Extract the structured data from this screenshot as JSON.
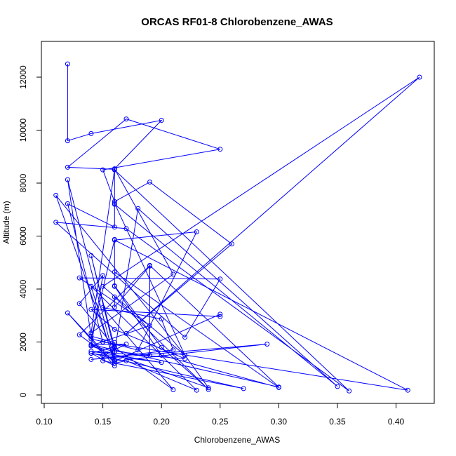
{
  "chart_data": {
    "type": "line",
    "title": "ORCAS RF01-8 Chlorobenzene_AWAS",
    "xlabel": "Chlorobenzene_AWAS",
    "ylabel": "Altitude (m)",
    "xlim": [
      0.1,
      0.42
    ],
    "ylim": [
      0,
      12500
    ],
    "x_ticks": [
      "0.10",
      "0.15",
      "0.20",
      "0.25",
      "0.30",
      "0.35",
      "0.40"
    ],
    "y_ticks": [
      "0",
      "2000",
      "4000",
      "6000",
      "8000",
      "10000",
      "12000"
    ],
    "series_color": "#0000ff",
    "markers": "open-circle",
    "grid": false,
    "series": [
      {
        "x": [
          0.12,
          0.12,
          0.14,
          0.2,
          0.16,
          0.21,
          0.14,
          0.16,
          0.12,
          0.17,
          0.25,
          0.15,
          0.16,
          0.19,
          0.26,
          0.17,
          0.42,
          0.15,
          0.22,
          0.16,
          0.16,
          0.36,
          0.17,
          0.11,
          0.22,
          0.25,
          0.13,
          0.19,
          0.14,
          0.16,
          0.18,
          0.35,
          0.16,
          0.16,
          0.12,
          0.15,
          0.41,
          0.16,
          0.23,
          0.18,
          0.14,
          0.16,
          0.16,
          0.2,
          0.3,
          0.16,
          0.16,
          0.2,
          0.24,
          0.16,
          0.16,
          0.19,
          0.19,
          0.16,
          0.14,
          0.16,
          0.13,
          0.15,
          0.14,
          0.24,
          0.22,
          0.11,
          0.16,
          0.12,
          0.14,
          0.16,
          0.16,
          0.21,
          0.15,
          0.2,
          0.21,
          0.14,
          0.29,
          0.16,
          0.25,
          0.25,
          0.14,
          0.16,
          0.22,
          0.14,
          0.2,
          0.14,
          0.16,
          0.16,
          0.13,
          0.19,
          0.3,
          0.14,
          0.17,
          0.15,
          0.15,
          0.27,
          0.14,
          0.16,
          0.12,
          0.16,
          0.17,
          0.23,
          0.14,
          0.16
        ],
        "y": [
          12500,
          9600,
          9870,
          10370,
          8540,
          4560,
          2340,
          8520,
          8600,
          10420,
          9280,
          8500,
          7300,
          8040,
          5700,
          2320,
          12000,
          4100,
          1500,
          7240,
          8500,
          150,
          6280,
          6520,
          2180,
          4380,
          4420,
          2620,
          1860,
          1640,
          7040,
          320,
          7200,
          6340,
          7220,
          2000,
          180,
          5850,
          6160,
          1700,
          2120,
          5870,
          4100,
          1500,
          280,
          4640,
          4120,
          1800,
          210,
          3700,
          3320,
          4870,
          1500,
          1650,
          5260,
          1800,
          3450,
          4510,
          1850,
          270,
          1500,
          7540,
          1320,
          8130,
          2220,
          1980,
          1800,
          200,
          3300,
          2870,
          1700,
          1340,
          1920,
          1280,
          3050,
          2960,
          3230,
          2480,
          1370,
          1650,
          1230,
          1570,
          1830,
          1280,
          2270,
          4890,
          300,
          1900,
          1920,
          1490,
          1290,
          240,
          1580,
          1100,
          3100,
          1200,
          1290,
          180,
          4100,
          1200
        ]
      }
    ]
  }
}
